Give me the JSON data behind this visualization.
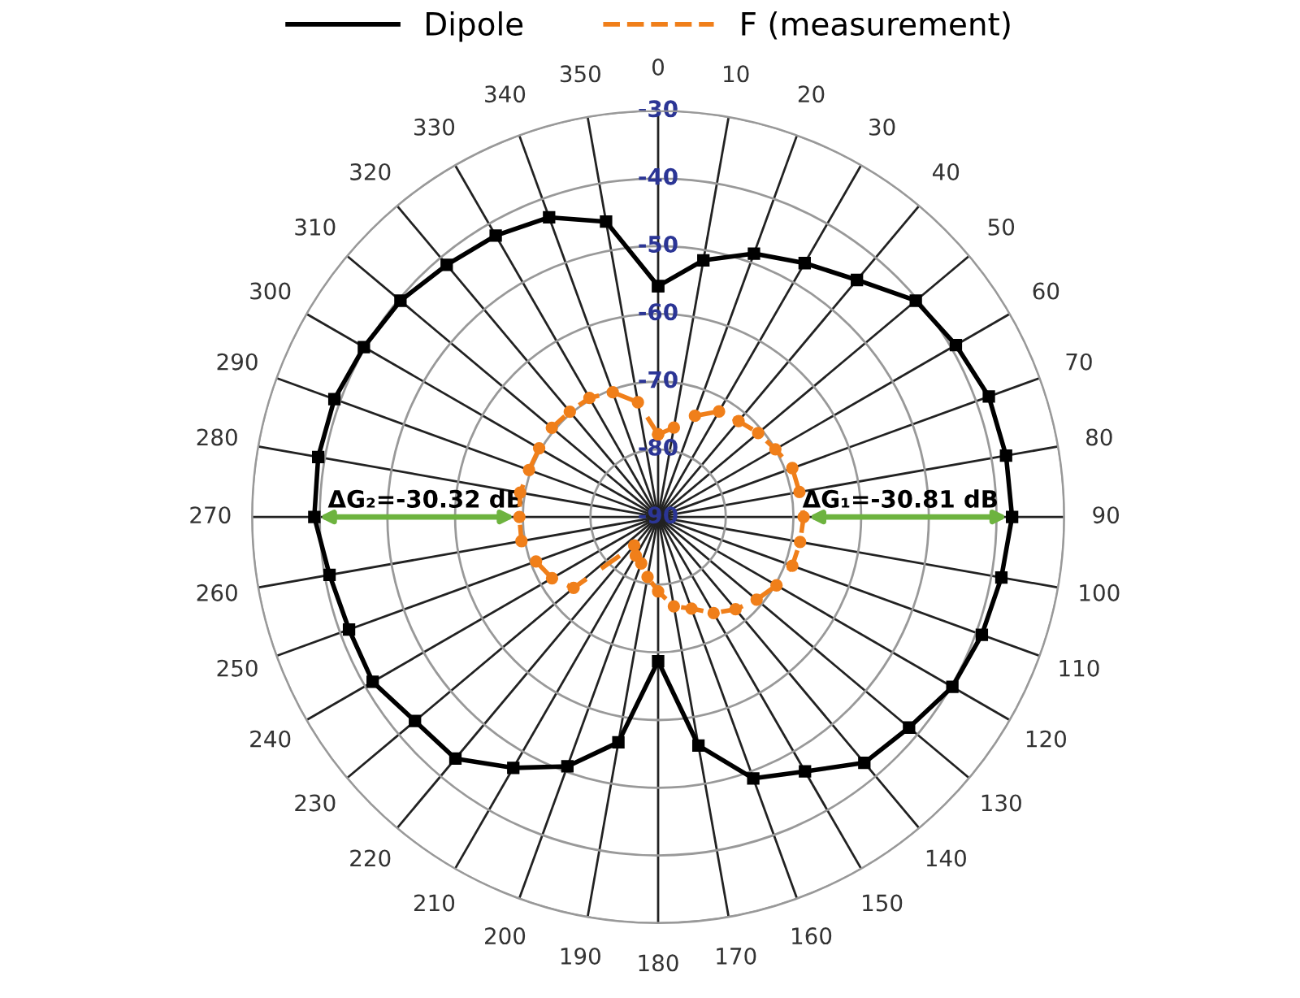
{
  "chart_data": {
    "type": "radar",
    "categories": [
      "0",
      "10",
      "20",
      "30",
      "40",
      "50",
      "60",
      "70",
      "80",
      "90",
      "100",
      "110",
      "120",
      "130",
      "140",
      "150",
      "160",
      "170",
      "180",
      "190",
      "200",
      "210",
      "220",
      "230",
      "240",
      "250",
      "260",
      "270",
      "280",
      "290",
      "300",
      "310",
      "320",
      "330",
      "340",
      "350"
    ],
    "series": [
      {
        "name": "Dipole",
        "color": "#000000",
        "marker": "square",
        "line_style": "solid",
        "values": [
          -55.9,
          -51.5,
          -48.6,
          -46.7,
          -44.3,
          -40.3,
          -39.2,
          -38.0,
          -37.8,
          -37.7,
          -38.5,
          -39.1,
          -39.8,
          -41.6,
          -42.6,
          -46.6,
          -48.9,
          -55.7,
          -68.7,
          -56.2,
          -50.8,
          -47.2,
          -43.4,
          -43.1,
          -41.3,
          -41.4,
          -40.7,
          -39.2,
          -39.0,
          -39.1,
          -39.8,
          -40.3,
          -41.4,
          -42.0,
          -42.9,
          -45.7
        ]
      },
      {
        "name": "F (measurement)",
        "color": "#f07f1a",
        "marker": "circle",
        "line_style": "dashed",
        "values": [
          -77.8,
          -76.6,
          -74.1,
          -72.0,
          -71.5,
          -70.7,
          -70.0,
          -68.9,
          -68.8,
          -68.5,
          -68.7,
          -68.9,
          -69.8,
          -71.0,
          -72.2,
          -73.6,
          -75.6,
          -76.6,
          -79.0,
          -81.0,
          -82.7,
          -83.4,
          -84.5,
          -73.7,
          -71.9,
          -70.8,
          -69.5,
          -69.5,
          -69.3,
          -69.7,
          -69.7,
          -69.5,
          -69.7,
          -69.7,
          -70.4,
          -72.8
        ]
      }
    ],
    "ylim": [
      -90,
      -30
    ],
    "yticks": [
      -90,
      -80,
      -70,
      -60,
      -50,
      -40,
      -30
    ],
    "grid": true,
    "legend": "top",
    "annotations": [
      {
        "text": "ΔG₁=-30.81 dB",
        "x": "90"
      },
      {
        "text": "ΔG₂=-30.32 dB",
        "x": "270"
      }
    ]
  }
}
